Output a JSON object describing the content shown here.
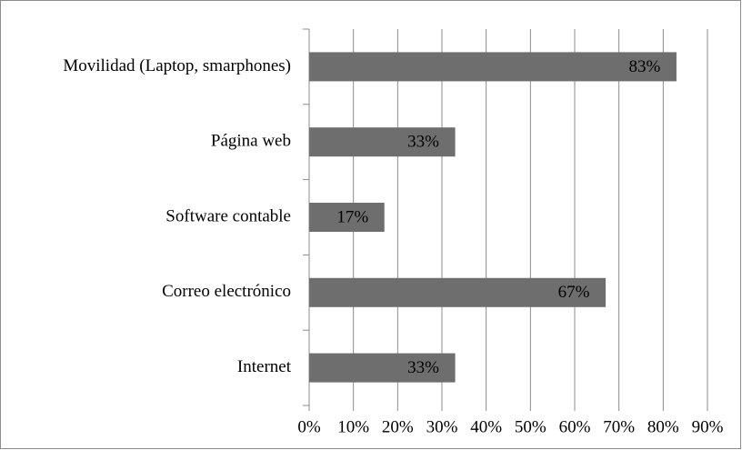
{
  "chart_data": {
    "type": "barh",
    "categories": [
      "Movilidad (Laptop, smarphones)",
      "Página web",
      "Software contable",
      "Correo electrónico",
      "Internet"
    ],
    "values": [
      83,
      33,
      17,
      67,
      33
    ],
    "value_labels": [
      "83%",
      "33%",
      "17%",
      "67%",
      "33%"
    ],
    "color": "#6e6e6e",
    "xlim": [
      0,
      90
    ],
    "xticks": [
      {
        "value": 0,
        "label": "0%"
      },
      {
        "value": 10,
        "label": "10%"
      },
      {
        "value": 20,
        "label": "20%"
      },
      {
        "value": 30,
        "label": "30%"
      },
      {
        "value": 40,
        "label": "40%"
      },
      {
        "value": 50,
        "label": "50%"
      },
      {
        "value": 60,
        "label": "60%"
      },
      {
        "value": 70,
        "label": "70%"
      },
      {
        "value": 80,
        "label": "80%"
      },
      {
        "value": 90,
        "label": "90%"
      }
    ],
    "grid": true
  }
}
